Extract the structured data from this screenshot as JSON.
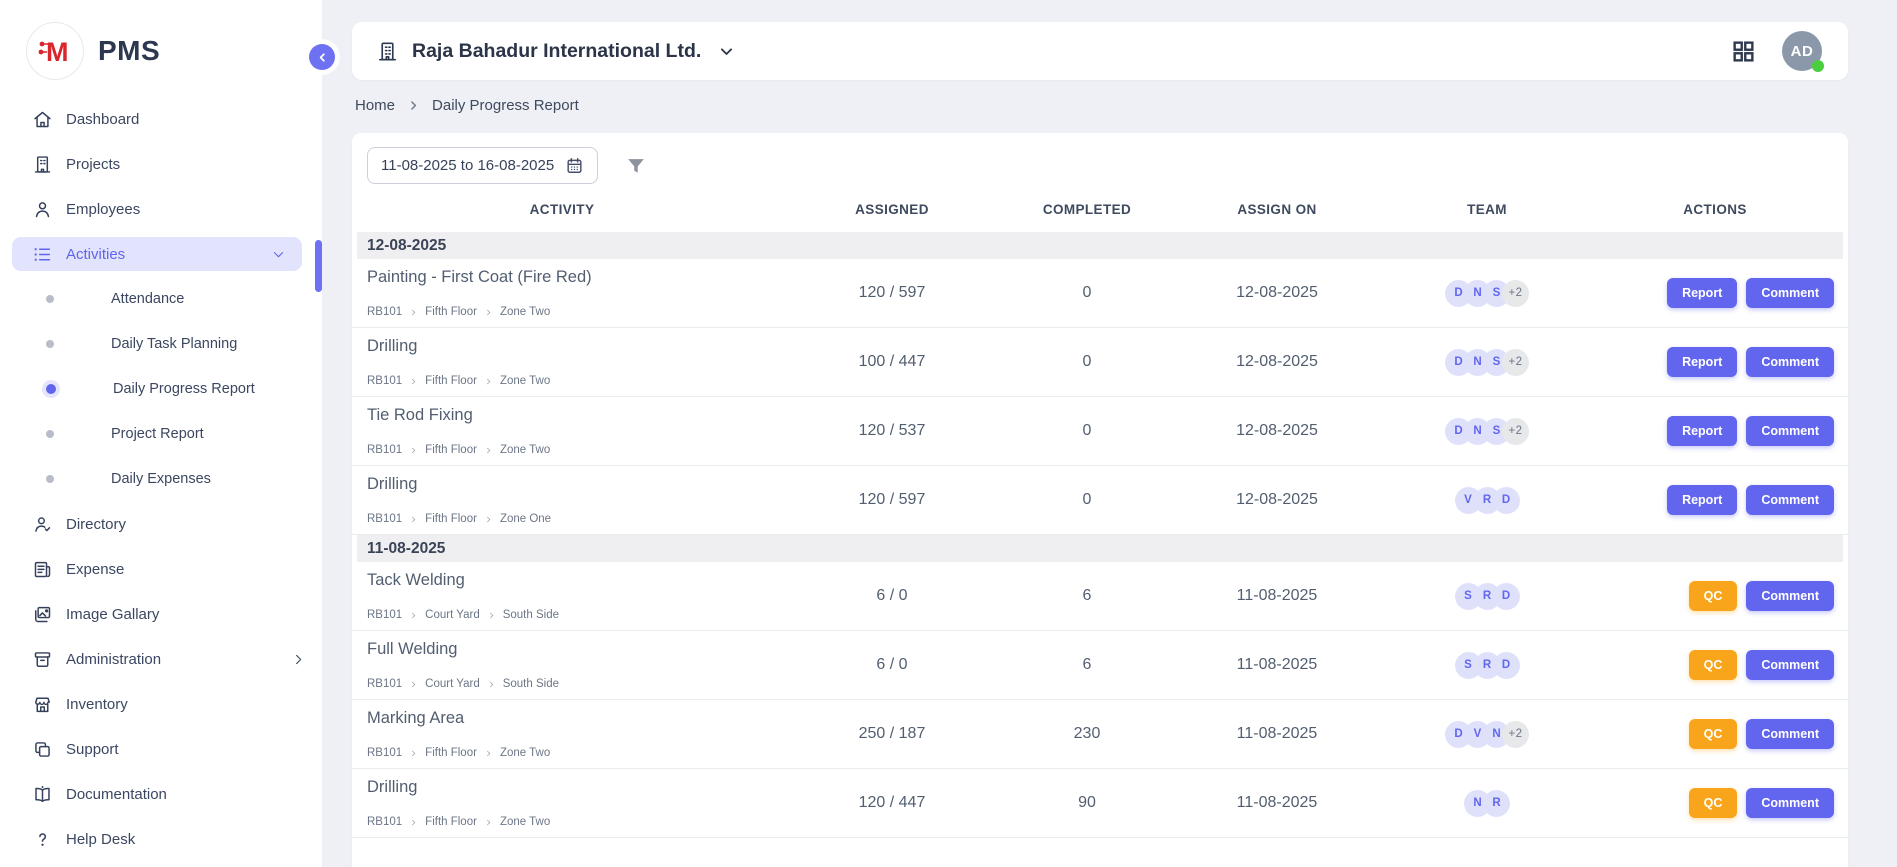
{
  "brand": {
    "name": "PMS",
    "logo_letter": "M"
  },
  "colors": {
    "accent_purple": "#6266ee",
    "active_item_bg": "#e2e3fc",
    "qc_orange": "#f9a51b",
    "logo_red": "#d8262c",
    "team_avatar_bg": "#dfe1fb",
    "team_avatar_text": "#6166ee",
    "extra_avatar_bg": "#e7e8ea",
    "online_green": "#4bcf3e",
    "group_bar_bg": "#efeff1",
    "page_bg": "#eef0f5"
  },
  "sidebar": {
    "items": [
      {
        "label": "Dashboard",
        "icon": "home-icon"
      },
      {
        "label": "Projects",
        "icon": "building-icon"
      },
      {
        "label": "Employees",
        "icon": "person-icon"
      },
      {
        "label": "Activities",
        "icon": "list-icon",
        "active": true,
        "trailing": "chevron-down-icon",
        "children": [
          {
            "label": "Attendance"
          },
          {
            "label": "Daily Task Planning"
          },
          {
            "label": "Daily Progress Report",
            "active": true
          },
          {
            "label": "Project Report"
          },
          {
            "label": "Daily Expenses"
          }
        ]
      },
      {
        "label": "Directory",
        "icon": "person-search-icon"
      },
      {
        "label": "Expense",
        "icon": "receipt-icon"
      },
      {
        "label": "Image Gallary",
        "icon": "gallery-icon"
      },
      {
        "label": "Administration",
        "icon": "archive-box-icon",
        "trailing": "chevron-right-icon"
      },
      {
        "label": "Inventory",
        "icon": "store-icon"
      },
      {
        "label": "Support",
        "icon": "copy-icon"
      },
      {
        "label": "Documentation",
        "icon": "book-icon"
      },
      {
        "label": "Help Desk",
        "icon": "question-icon"
      }
    ]
  },
  "header": {
    "company": "Raja Bahadur International Ltd.",
    "company_icon": "building-icon",
    "apps_icon": "grid-icon",
    "avatar_initials": "AD",
    "online": true
  },
  "breadcrumb": {
    "items": [
      "Home",
      "Daily Progress Report"
    ]
  },
  "filters": {
    "date_range": "11-08-2025 to 16-08-2025",
    "date_icon": "calendar-icon",
    "filter_icon": "funnel-icon"
  },
  "table": {
    "columns": [
      "ACTIVITY",
      "ASSIGNED",
      "COMPLETED",
      "ASSIGN ON",
      "TEAM",
      "ACTIONS"
    ],
    "groups": [
      {
        "date": "12-08-2025",
        "rows": [
          {
            "activity": "Painting - First Coat (Fire Red)",
            "path": [
              "RB101",
              "Fifth Floor",
              "Zone Two"
            ],
            "assigned": "120 / 597",
            "completed": "0",
            "assign_on": "12-08-2025",
            "team": [
              "D",
              "N",
              "S"
            ],
            "team_extra": "+2",
            "actions": [
              "Report",
              "Comment"
            ]
          },
          {
            "activity": "Drilling",
            "path": [
              "RB101",
              "Fifth Floor",
              "Zone Two"
            ],
            "assigned": "100 / 447",
            "completed": "0",
            "assign_on": "12-08-2025",
            "team": [
              "D",
              "N",
              "S"
            ],
            "team_extra": "+2",
            "actions": [
              "Report",
              "Comment"
            ]
          },
          {
            "activity": "Tie Rod Fixing",
            "path": [
              "RB101",
              "Fifth Floor",
              "Zone Two"
            ],
            "assigned": "120 / 537",
            "completed": "0",
            "assign_on": "12-08-2025",
            "team": [
              "D",
              "N",
              "S"
            ],
            "team_extra": "+2",
            "actions": [
              "Report",
              "Comment"
            ]
          },
          {
            "activity": "Drilling",
            "path": [
              "RB101",
              "Fifth Floor",
              "Zone One"
            ],
            "assigned": "120 / 597",
            "completed": "0",
            "assign_on": "12-08-2025",
            "team": [
              "V",
              "R",
              "D"
            ],
            "team_extra": "",
            "actions": [
              "Report",
              "Comment"
            ]
          }
        ]
      },
      {
        "date": "11-08-2025",
        "rows": [
          {
            "activity": "Tack Welding",
            "path": [
              "RB101",
              "Court Yard",
              "South Side"
            ],
            "assigned": "6 / 0",
            "completed": "6",
            "assign_on": "11-08-2025",
            "team": [
              "S",
              "R",
              "D"
            ],
            "team_extra": "",
            "actions": [
              "QC",
              "Comment"
            ]
          },
          {
            "activity": "Full Welding",
            "path": [
              "RB101",
              "Court Yard",
              "South Side"
            ],
            "assigned": "6 / 0",
            "completed": "6",
            "assign_on": "11-08-2025",
            "team": [
              "S",
              "R",
              "D"
            ],
            "team_extra": "",
            "actions": [
              "QC",
              "Comment"
            ]
          },
          {
            "activity": "Marking Area",
            "path": [
              "RB101",
              "Fifth Floor",
              "Zone Two"
            ],
            "assigned": "250 / 187",
            "completed": "230",
            "assign_on": "11-08-2025",
            "team": [
              "D",
              "V",
              "N"
            ],
            "team_extra": "+2",
            "actions": [
              "QC",
              "Comment"
            ]
          },
          {
            "activity": "Drilling",
            "path": [
              "RB101",
              "Fifth Floor",
              "Zone Two"
            ],
            "assigned": "120 / 447",
            "completed": "90",
            "assign_on": "11-08-2025",
            "team": [
              "N",
              "R"
            ],
            "team_extra": "",
            "actions": [
              "QC",
              "Comment"
            ]
          }
        ]
      }
    ]
  }
}
